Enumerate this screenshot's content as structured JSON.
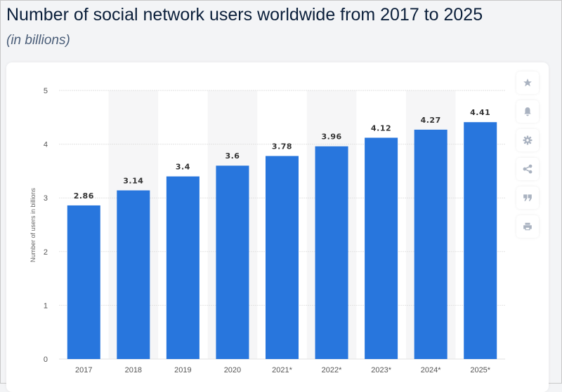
{
  "header": {
    "title": "Number of social network users worldwide from 2017 to 2025",
    "subtitle": "(in billions)"
  },
  "toolbar": {
    "icons": [
      "star-icon",
      "bell-icon",
      "gear-icon",
      "share-icon",
      "quote-icon",
      "print-icon"
    ]
  },
  "chart_data": {
    "type": "bar",
    "title": "Number of social network users worldwide from 2017 to 2025",
    "subtitle": "(in billions)",
    "categories": [
      "2017",
      "2018",
      "2019",
      "2020",
      "2021*",
      "2022*",
      "2023*",
      "2024*",
      "2025*"
    ],
    "values": [
      2.86,
      3.14,
      3.4,
      3.6,
      3.78,
      3.96,
      4.12,
      4.27,
      4.41
    ],
    "value_labels": [
      "2.86",
      "3.14",
      "3.4",
      "3.6",
      "3.78",
      "3.96",
      "4.12",
      "4.27",
      "4.41"
    ],
    "xlabel": "",
    "ylabel": "Number of users in billions",
    "ylim": [
      0,
      5
    ],
    "yticks": [
      0,
      1,
      2,
      3,
      4,
      5
    ],
    "yticks_labels": [
      "0",
      "1",
      "2",
      "3",
      "4",
      "5"
    ],
    "grid": true,
    "bar_color": "#2876dd"
  }
}
